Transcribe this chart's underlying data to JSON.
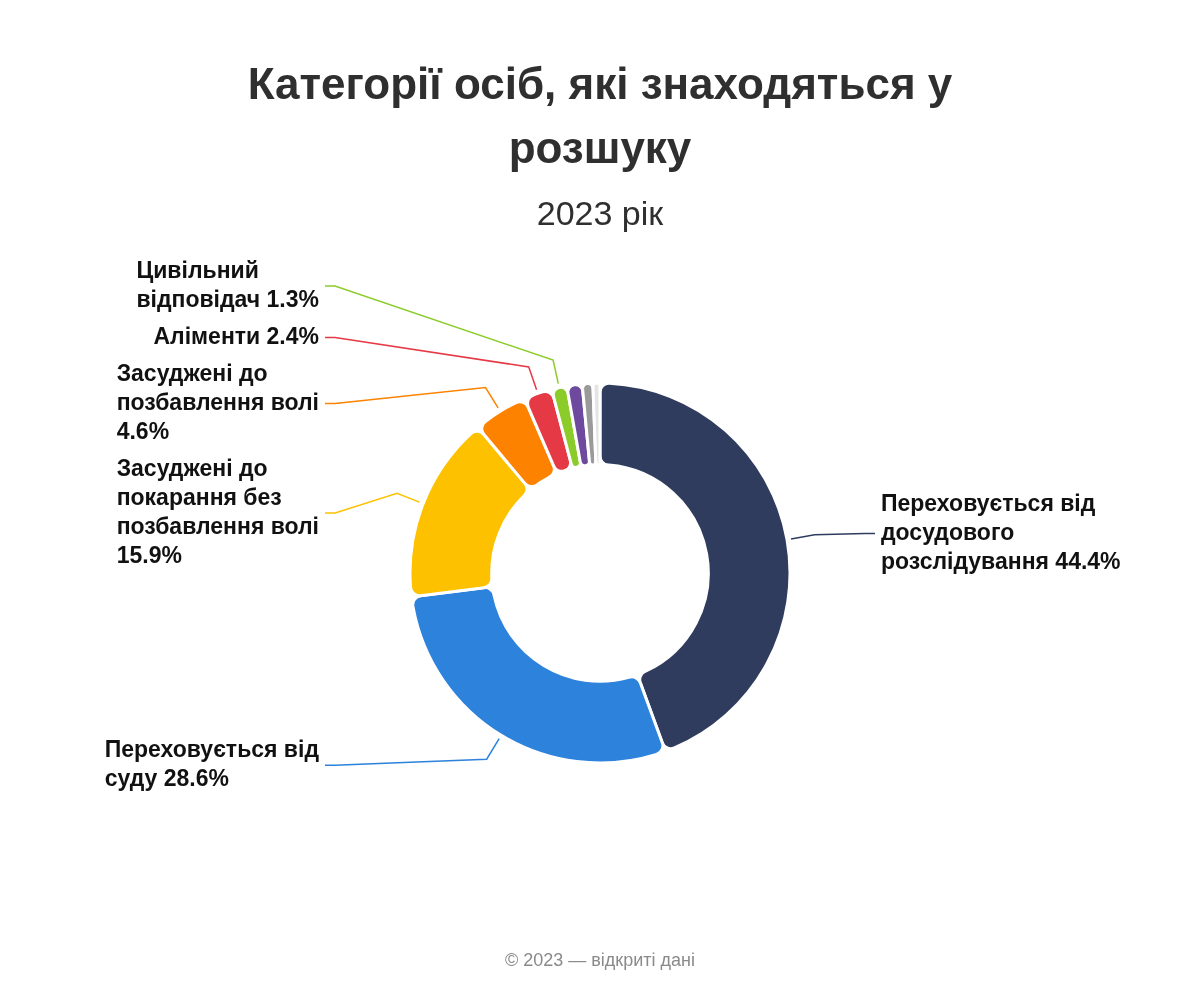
{
  "chart_data": {
    "type": "donut",
    "title": "Категорії осіб, які знаходяться у розшуку",
    "subtitle": "2023 рік",
    "categories": [
      "Переховується від досудового розслідування",
      "Переховується від суду",
      "Засуджені до покарання без позбавлення волі",
      "Засуджені до позбавлення волі",
      "Аліменти",
      "Цивільний відповідач",
      null,
      null,
      null
    ],
    "values": [
      44.4,
      28.6,
      15.9,
      4.6,
      2.4,
      1.3,
      1.3,
      0.9,
      0.6
    ],
    "colors": [
      "#2f3c5e",
      "#2d82db",
      "#fdc100",
      "#fd8200",
      "#e63946",
      "#8ccc2a",
      "#6e4a9e",
      "#9a9a9a",
      "#e4e4e4"
    ],
    "value_labels": [
      "44.4%",
      "28.6%",
      "15.9%",
      "4.6%",
      "2.4%",
      "1.3%",
      null,
      null,
      null
    ],
    "legend": false,
    "annotations": [
      "© 2023 — відкриті дані"
    ]
  }
}
